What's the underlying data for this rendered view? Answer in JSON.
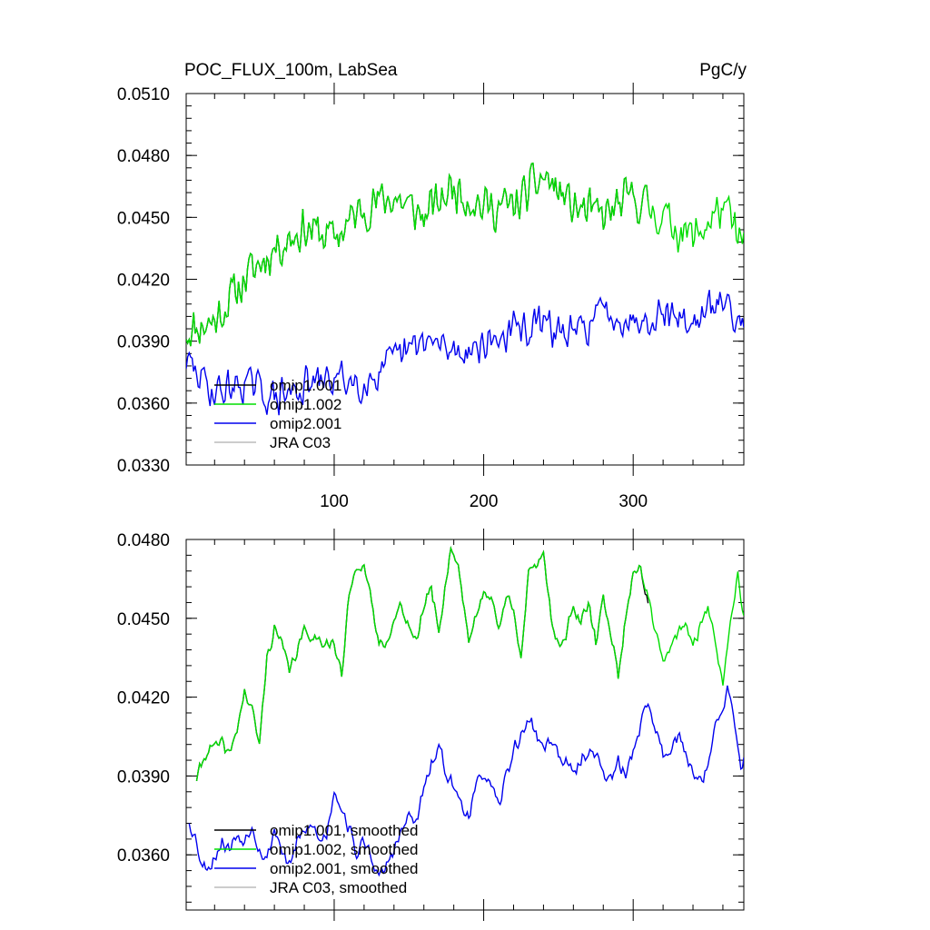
{
  "chart_data": [
    {
      "type": "line",
      "title": "POC_FLUX_100m, LabSea",
      "units": "PgC/y",
      "xlim": [
        1,
        374
      ],
      "ylim": [
        0.033,
        0.051
      ],
      "x_ticks": [
        100,
        200,
        300
      ],
      "x_tick_labels": [
        "100",
        "200",
        "300"
      ],
      "y_ticks": [
        0.033,
        0.036,
        0.039,
        0.042,
        0.045,
        0.048,
        0.051
      ],
      "y_tick_labels": [
        "0.0330",
        "0.0360",
        "0.0390",
        "0.0420",
        "0.0450",
        "0.0480",
        "0.0510"
      ],
      "legend_position": "bottom-left",
      "colors": {
        "omip1.001": "#000000",
        "omip1.002": "#00dd00",
        "omip2.001": "#0000ee",
        "JRA C03": "#bbbbbb"
      },
      "series": [
        {
          "name": "omip1.001",
          "x_end": 310,
          "keyframes": [
            [
              1,
              0.0395
            ],
            [
              20,
              0.04
            ],
            [
              40,
              0.042
            ],
            [
              60,
              0.0435
            ],
            [
              80,
              0.0445
            ],
            [
              100,
              0.044
            ],
            [
              120,
              0.0455
            ],
            [
              140,
              0.046
            ],
            [
              160,
              0.045
            ],
            [
              180,
              0.0465
            ],
            [
              200,
              0.0455
            ],
            [
              220,
              0.0455
            ],
            [
              240,
              0.047
            ],
            [
              260,
              0.0455
            ],
            [
              280,
              0.045
            ],
            [
              300,
              0.046
            ],
            [
              310,
              0.0455
            ]
          ],
          "noise": 0.0013,
          "seed": 11
        },
        {
          "name": "omip1.002",
          "x_end": 374,
          "keyframes": [
            [
              1,
              0.0395
            ],
            [
              20,
              0.04
            ],
            [
              40,
              0.042
            ],
            [
              60,
              0.0435
            ],
            [
              80,
              0.0445
            ],
            [
              100,
              0.044
            ],
            [
              120,
              0.0455
            ],
            [
              140,
              0.046
            ],
            [
              160,
              0.045
            ],
            [
              180,
              0.0465
            ],
            [
              200,
              0.0455
            ],
            [
              220,
              0.0455
            ],
            [
              240,
              0.047
            ],
            [
              260,
              0.0455
            ],
            [
              280,
              0.045
            ],
            [
              300,
              0.046
            ],
            [
              320,
              0.045
            ],
            [
              340,
              0.044
            ],
            [
              360,
              0.0455
            ],
            [
              374,
              0.0435
            ]
          ],
          "noise": 0.0013,
          "seed": 11
        },
        {
          "name": "omip2.001",
          "x_end": 374,
          "keyframes": [
            [
              1,
              0.038
            ],
            [
              20,
              0.0365
            ],
            [
              40,
              0.037
            ],
            [
              60,
              0.0362
            ],
            [
              80,
              0.0368
            ],
            [
              100,
              0.0372
            ],
            [
              120,
              0.037
            ],
            [
              140,
              0.038
            ],
            [
              160,
              0.039
            ],
            [
              180,
              0.0385
            ],
            [
              200,
              0.0388
            ],
            [
              220,
              0.0395
            ],
            [
              240,
              0.0398
            ],
            [
              260,
              0.0392
            ],
            [
              280,
              0.0405
            ],
            [
              300,
              0.04
            ],
            [
              320,
              0.0405
            ],
            [
              340,
              0.0398
            ],
            [
              360,
              0.041
            ],
            [
              374,
              0.04
            ]
          ],
          "noise": 0.0011,
          "seed": 29
        },
        {
          "name": "JRA C03",
          "x_end": 0,
          "keyframes": [],
          "noise": 0,
          "seed": 1
        }
      ]
    },
    {
      "type": "line",
      "title": "",
      "xlim": [
        1,
        374
      ],
      "ylim": [
        0.0339,
        0.048
      ],
      "y_ticks": [
        0.036,
        0.039,
        0.042,
        0.045,
        0.048
      ],
      "y_tick_labels": [
        "0.0360",
        "0.0390",
        "0.0420",
        "0.0450",
        "0.0480"
      ],
      "legend_position": "bottom-left",
      "series": [
        {
          "name": "omip1.001, smoothed",
          "x_end": 310,
          "keyframes": [
            [
              8,
              0.0389
            ],
            [
              15,
              0.04
            ],
            [
              25,
              0.0402
            ],
            [
              30,
              0.0398
            ],
            [
              35,
              0.0408
            ],
            [
              40,
              0.0422
            ],
            [
              45,
              0.0415
            ],
            [
              50,
              0.0402
            ],
            [
              55,
              0.0435
            ],
            [
              60,
              0.0446
            ],
            [
              65,
              0.044
            ],
            [
              70,
              0.043
            ],
            [
              80,
              0.0445
            ],
            [
              90,
              0.0442
            ],
            [
              100,
              0.044
            ],
            [
              105,
              0.0428
            ],
            [
              110,
              0.0458
            ],
            [
              115,
              0.0471
            ],
            [
              120,
              0.047
            ],
            [
              125,
              0.0455
            ],
            [
              130,
              0.044
            ],
            [
              135,
              0.0442
            ],
            [
              145,
              0.0455
            ],
            [
              155,
              0.044
            ],
            [
              160,
              0.0455
            ],
            [
              165,
              0.0462
            ],
            [
              170,
              0.0445
            ],
            [
              175,
              0.0465
            ],
            [
              178,
              0.0477
            ],
            [
              183,
              0.047
            ],
            [
              190,
              0.0442
            ],
            [
              195,
              0.045
            ],
            [
              200,
              0.046
            ],
            [
              205,
              0.0459
            ],
            [
              210,
              0.0445
            ],
            [
              215,
              0.0458
            ],
            [
              220,
              0.0455
            ],
            [
              225,
              0.0435
            ],
            [
              230,
              0.0466
            ],
            [
              235,
              0.047
            ],
            [
              240,
              0.0476
            ],
            [
              245,
              0.045
            ],
            [
              250,
              0.044
            ],
            [
              255,
              0.0444
            ],
            [
              260,
              0.0455
            ],
            [
              265,
              0.0447
            ],
            [
              270,
              0.0456
            ],
            [
              275,
              0.044
            ],
            [
              280,
              0.0458
            ],
            [
              285,
              0.0445
            ],
            [
              290,
              0.0428
            ],
            [
              295,
              0.045
            ],
            [
              300,
              0.0468
            ],
            [
              305,
              0.047
            ],
            [
              310,
              0.0455
            ]
          ],
          "noise": 0.0003,
          "seed": 41
        },
        {
          "name": "omip1.002, smoothed",
          "x_end": 374,
          "keyframes": [
            [
              8,
              0.0389
            ],
            [
              15,
              0.04
            ],
            [
              25,
              0.0402
            ],
            [
              30,
              0.0398
            ],
            [
              35,
              0.0408
            ],
            [
              40,
              0.0422
            ],
            [
              45,
              0.0415
            ],
            [
              50,
              0.0402
            ],
            [
              55,
              0.0435
            ],
            [
              60,
              0.0446
            ],
            [
              65,
              0.044
            ],
            [
              70,
              0.043
            ],
            [
              80,
              0.0445
            ],
            [
              90,
              0.0442
            ],
            [
              100,
              0.044
            ],
            [
              105,
              0.0428
            ],
            [
              110,
              0.0458
            ],
            [
              115,
              0.0471
            ],
            [
              120,
              0.047
            ],
            [
              125,
              0.0455
            ],
            [
              130,
              0.044
            ],
            [
              135,
              0.0442
            ],
            [
              145,
              0.0455
            ],
            [
              155,
              0.044
            ],
            [
              160,
              0.0455
            ],
            [
              165,
              0.0462
            ],
            [
              170,
              0.0445
            ],
            [
              175,
              0.0465
            ],
            [
              178,
              0.0477
            ],
            [
              183,
              0.047
            ],
            [
              190,
              0.0442
            ],
            [
              195,
              0.045
            ],
            [
              200,
              0.046
            ],
            [
              205,
              0.0459
            ],
            [
              210,
              0.0445
            ],
            [
              215,
              0.0458
            ],
            [
              220,
              0.0455
            ],
            [
              225,
              0.0435
            ],
            [
              230,
              0.0466
            ],
            [
              235,
              0.047
            ],
            [
              240,
              0.0476
            ],
            [
              245,
              0.045
            ],
            [
              250,
              0.044
            ],
            [
              255,
              0.0444
            ],
            [
              260,
              0.0455
            ],
            [
              265,
              0.0447
            ],
            [
              270,
              0.0456
            ],
            [
              275,
              0.044
            ],
            [
              280,
              0.0458
            ],
            [
              285,
              0.0445
            ],
            [
              290,
              0.0428
            ],
            [
              295,
              0.045
            ],
            [
              300,
              0.0468
            ],
            [
              305,
              0.047
            ],
            [
              315,
              0.0445
            ],
            [
              320,
              0.0432
            ],
            [
              330,
              0.0445
            ],
            [
              335,
              0.0448
            ],
            [
              340,
              0.0438
            ],
            [
              345,
              0.0448
            ],
            [
              350,
              0.0455
            ],
            [
              355,
              0.044
            ],
            [
              360,
              0.0425
            ],
            [
              365,
              0.045
            ],
            [
              370,
              0.0468
            ],
            [
              374,
              0.045
            ]
          ],
          "noise": 0.0003,
          "seed": 41
        },
        {
          "name": "omip2.001, smoothed",
          "x_end": 374,
          "keyframes": [
            [
              3,
              0.0373
            ],
            [
              8,
              0.0365
            ],
            [
              12,
              0.0355
            ],
            [
              18,
              0.0357
            ],
            [
              25,
              0.0365
            ],
            [
              30,
              0.0362
            ],
            [
              35,
              0.0368
            ],
            [
              40,
              0.0365
            ],
            [
              45,
              0.0372
            ],
            [
              50,
              0.0362
            ],
            [
              55,
              0.0358
            ],
            [
              60,
              0.037
            ],
            [
              65,
              0.0362
            ],
            [
              70,
              0.0355
            ],
            [
              75,
              0.0365
            ],
            [
              80,
              0.0368
            ],
            [
              85,
              0.0372
            ],
            [
              90,
              0.0365
            ],
            [
              95,
              0.0368
            ],
            [
              100,
              0.0385
            ],
            [
              105,
              0.0378
            ],
            [
              110,
              0.037
            ],
            [
              115,
              0.036
            ],
            [
              120,
              0.0365
            ],
            [
              125,
              0.036
            ],
            [
              130,
              0.035
            ],
            [
              140,
              0.0362
            ],
            [
              150,
              0.0375
            ],
            [
              155,
              0.0372
            ],
            [
              160,
              0.0385
            ],
            [
              165,
              0.0394
            ],
            [
              170,
              0.04
            ],
            [
              175,
              0.0392
            ],
            [
              180,
              0.0385
            ],
            [
              185,
              0.038
            ],
            [
              190,
              0.0375
            ],
            [
              195,
              0.0385
            ],
            [
              200,
              0.0392
            ],
            [
              205,
              0.0385
            ],
            [
              210,
              0.0378
            ],
            [
              215,
              0.039
            ],
            [
              220,
              0.04
            ],
            [
              225,
              0.0405
            ],
            [
              230,
              0.0412
            ],
            [
              235,
              0.0406
            ],
            [
              240,
              0.04
            ],
            [
              245,
              0.0405
            ],
            [
              250,
              0.0398
            ],
            [
              255,
              0.0395
            ],
            [
              260,
              0.039
            ],
            [
              265,
              0.0396
            ],
            [
              270,
              0.04
            ],
            [
              275,
              0.0398
            ],
            [
              280,
              0.0392
            ],
            [
              285,
              0.0388
            ],
            [
              290,
              0.0395
            ],
            [
              295,
              0.039
            ],
            [
              300,
              0.04
            ],
            [
              305,
              0.041
            ],
            [
              310,
              0.0418
            ],
            [
              315,
              0.0408
            ],
            [
              320,
              0.0398
            ],
            [
              330,
              0.0405
            ],
            [
              340,
              0.0392
            ],
            [
              345,
              0.0388
            ],
            [
              350,
              0.0395
            ],
            [
              355,
              0.0408
            ],
            [
              360,
              0.0415
            ],
            [
              363,
              0.0423
            ],
            [
              367,
              0.0412
            ],
            [
              370,
              0.04
            ],
            [
              372,
              0.0393
            ],
            [
              374,
              0.0397
            ]
          ],
          "noise": 0.00035,
          "seed": 53
        },
        {
          "name": "JRA C03, smoothed",
          "x_end": 0,
          "keyframes": [],
          "noise": 0,
          "seed": 1
        }
      ]
    }
  ]
}
